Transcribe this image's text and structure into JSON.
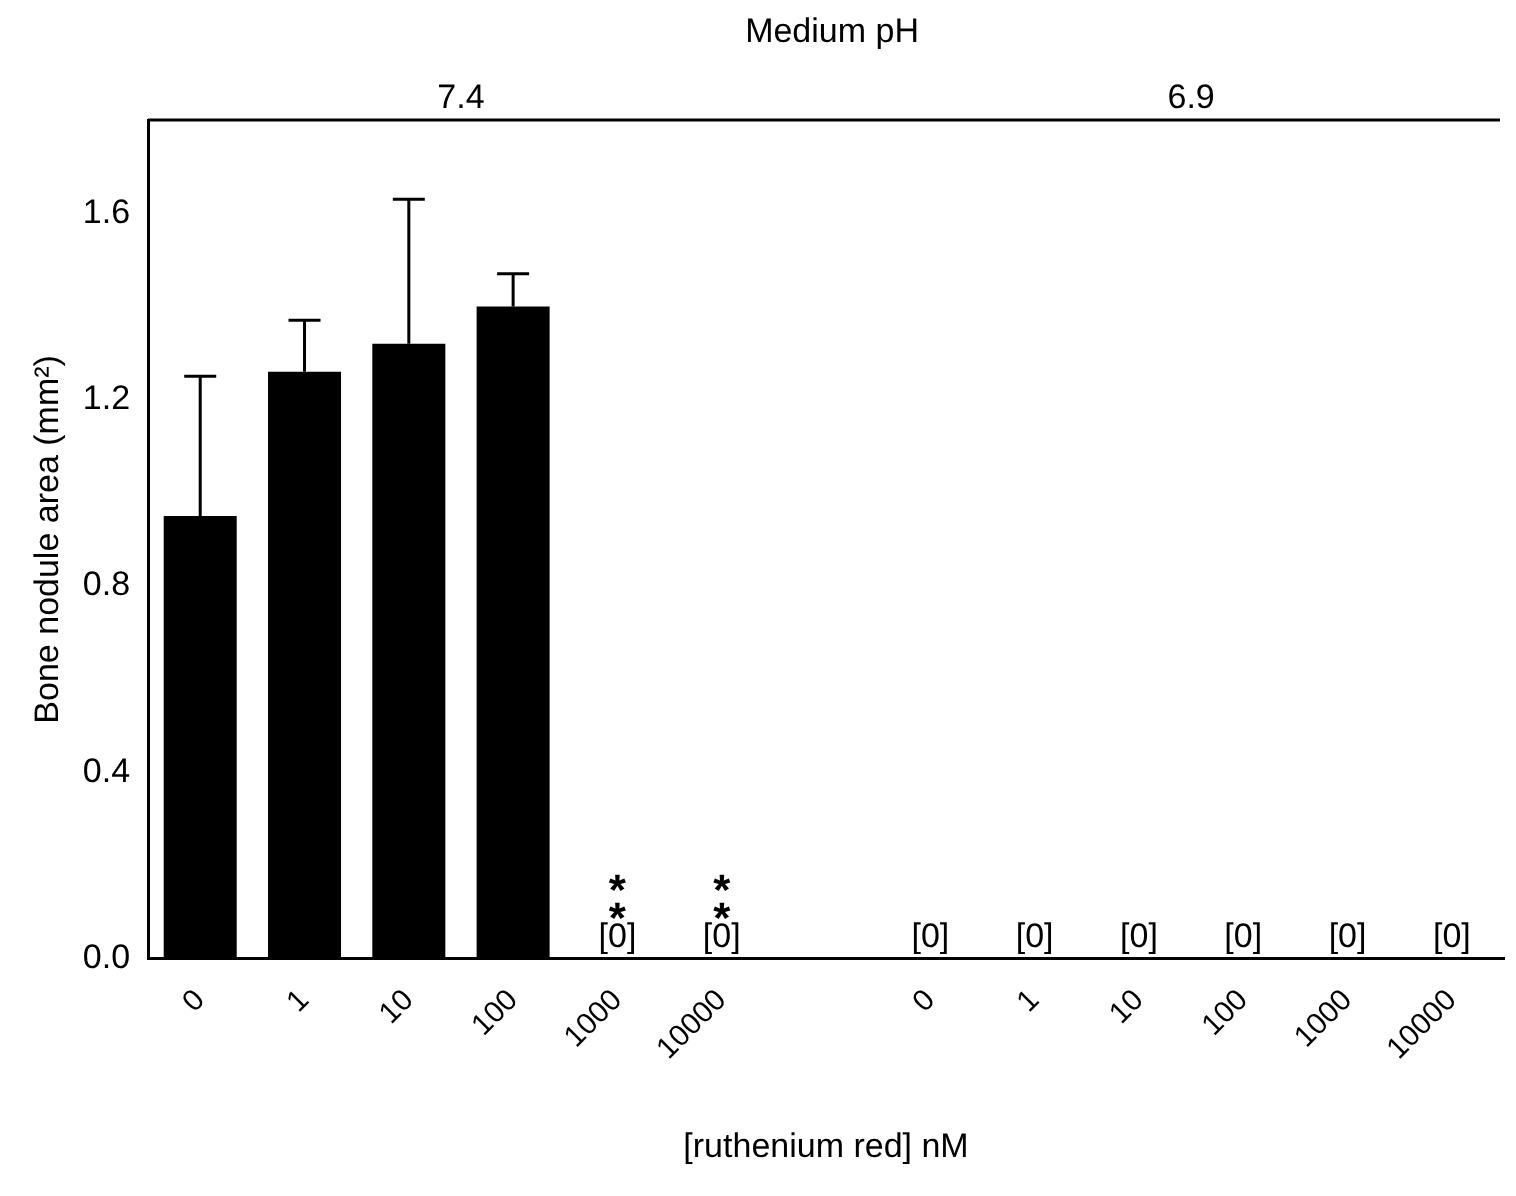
{
  "chart_data": {
    "type": "bar",
    "x2label": "Medium pH",
    "xlabel": "[ruthenium red] nM",
    "ylabel": "Bone nodule area (mm²)",
    "categories": [
      "0",
      "1",
      "10",
      "100",
      "1000",
      "10000",
      null,
      "0",
      "1",
      "10",
      "100",
      "1000",
      "10000"
    ],
    "values": [
      0.95,
      1.26,
      1.32,
      1.4,
      0,
      0,
      null,
      0,
      0,
      0,
      0,
      0,
      0
    ],
    "errors": [
      [
        0.95,
        1.25
      ],
      [
        1.26,
        1.37
      ],
      [
        1.32,
        1.63
      ],
      [
        1.4,
        1.47
      ],
      null,
      null,
      null,
      null,
      null,
      null,
      null,
      null,
      null
    ],
    "value_labels": [
      null,
      null,
      null,
      null,
      "[0]",
      "[0]",
      null,
      "[0]",
      "[0]",
      "[0]",
      "[0]",
      "[0]",
      "[0]"
    ],
    "color": "#000000",
    "annotations": [
      "7.4",
      "6.9",
      "**",
      "**"
    ],
    "ylim": [
      0,
      1.8
    ],
    "yticks": [
      {
        "value": 0,
        "label": "0.0"
      },
      {
        "value": 0.4,
        "label": "0.4"
      },
      {
        "value": 0.8,
        "label": "0.8"
      },
      {
        "value": 1.2,
        "label": "1.2"
      },
      {
        "value": 1.6,
        "label": "1.6"
      }
    ],
    "grid": false,
    "legend": false
  }
}
